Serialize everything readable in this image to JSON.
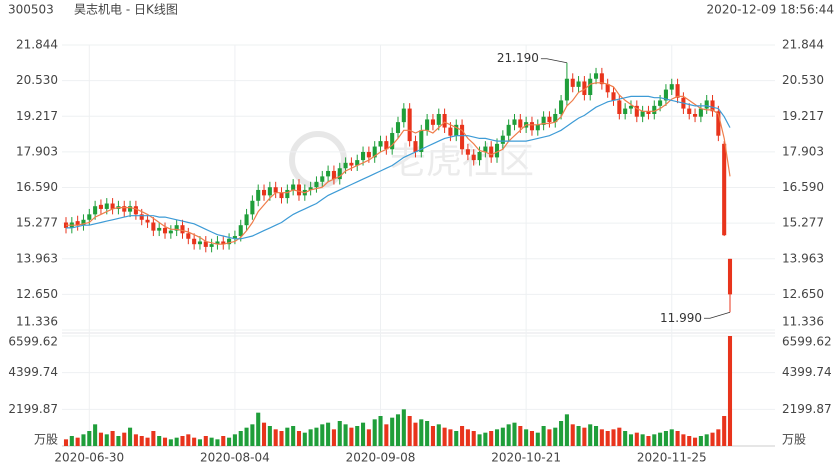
{
  "header": {
    "code": "300503",
    "title": "昊志机电 - 日K线图",
    "timestamp": "2020-12-09 18:56:44"
  },
  "watermark": "老虎社区",
  "chart_data": {
    "type": "candlestick",
    "categories": [
      null,
      null,
      null,
      null,
      "2020-06-30",
      null,
      null,
      null,
      null,
      null,
      null,
      null,
      null,
      null,
      null,
      null,
      null,
      null,
      null,
      null,
      null,
      null,
      null,
      null,
      null,
      null,
      null,
      null,
      null,
      "2020-08-04",
      null,
      null,
      null,
      null,
      null,
      null,
      null,
      null,
      null,
      null,
      null,
      null,
      null,
      null,
      null,
      null,
      null,
      null,
      null,
      null,
      null,
      null,
      null,
      null,
      "2020-09-08",
      null,
      null,
      null,
      null,
      null,
      null,
      null,
      null,
      null,
      null,
      null,
      null,
      null,
      null,
      null,
      null,
      null,
      null,
      null,
      null,
      null,
      null,
      null,
      null,
      "2020-10-21",
      null,
      null,
      null,
      null,
      null,
      null,
      null,
      null,
      null,
      null,
      null,
      null,
      null,
      null,
      null,
      null,
      null,
      null,
      null,
      null,
      null,
      null,
      null,
      null,
      "2020-11-25",
      null,
      null,
      null,
      null,
      null,
      null,
      null,
      null,
      null,
      null
    ],
    "open": [
      15.3,
      15.1,
      15.35,
      15.2,
      15.4,
      15.6,
      15.95,
      15.8,
      16.0,
      15.8,
      15.9,
      15.7,
      15.9,
      15.6,
      15.4,
      15.3,
      15.0,
      15.1,
      14.9,
      15.0,
      15.2,
      14.9,
      14.7,
      14.5,
      14.6,
      14.4,
      14.5,
      14.6,
      14.5,
      14.7,
      14.8,
      15.2,
      15.6,
      16.1,
      16.5,
      16.3,
      16.6,
      16.4,
      16.2,
      16.5,
      16.7,
      16.3,
      16.5,
      16.6,
      16.8,
      17.0,
      17.2,
      16.9,
      17.3,
      17.5,
      17.4,
      17.6,
      17.9,
      17.7,
      18.1,
      18.3,
      18.0,
      18.6,
      19.0,
      19.5,
      18.3,
      17.9,
      18.7,
      19.1,
      18.9,
      19.3,
      18.8,
      18.5,
      18.9,
      18.0,
      17.8,
      17.6,
      17.9,
      18.1,
      17.7,
      18.2,
      18.5,
      18.9,
      19.1,
      18.8,
      19.0,
      18.7,
      18.9,
      19.2,
      19.0,
      19.3,
      19.8,
      20.6,
      20.3,
      20.5,
      20.0,
      20.6,
      20.8,
      20.4,
      20.1,
      19.8,
      19.3,
      19.5,
      19.6,
      19.2,
      19.4,
      19.3,
      19.6,
      19.8,
      20.2,
      20.4,
      19.9,
      19.5,
      19.3,
      19.2,
      19.5,
      19.8,
      19.4,
      18.2,
      13.96
    ],
    "high": [
      15.5,
      15.5,
      15.55,
      15.6,
      15.8,
      16.1,
      16.15,
      16.2,
      16.2,
      16.1,
      16.1,
      16.1,
      16.1,
      15.8,
      15.6,
      15.5,
      15.3,
      15.3,
      15.2,
      15.4,
      15.4,
      15.1,
      14.9,
      14.8,
      14.8,
      14.7,
      14.8,
      14.8,
      14.9,
      15.0,
      15.4,
      15.8,
      16.3,
      16.7,
      16.7,
      16.8,
      16.8,
      16.6,
      16.7,
      16.9,
      16.9,
      16.7,
      16.8,
      17.0,
      17.2,
      17.4,
      17.4,
      17.5,
      17.7,
      17.7,
      17.8,
      18.1,
      18.1,
      18.3,
      18.5,
      18.5,
      18.8,
      19.2,
      19.7,
      19.7,
      18.5,
      18.9,
      19.3,
      19.3,
      19.5,
      19.5,
      19.0,
      19.1,
      19.1,
      18.2,
      18.0,
      18.1,
      18.3,
      18.3,
      18.4,
      18.7,
      19.1,
      19.3,
      19.3,
      19.2,
      19.2,
      19.1,
      19.4,
      19.4,
      19.5,
      20.0,
      21.19,
      20.8,
      20.7,
      20.7,
      20.8,
      21.0,
      21.0,
      20.6,
      20.3,
      20.0,
      19.7,
      19.8,
      19.8,
      19.6,
      19.6,
      19.8,
      20.0,
      20.4,
      20.6,
      20.6,
      20.1,
      19.7,
      19.5,
      19.7,
      20.0,
      20.0,
      19.6,
      18.3,
      13.96
    ],
    "low": [
      14.9,
      14.9,
      15.0,
      15.0,
      15.2,
      15.4,
      15.6,
      15.6,
      15.6,
      15.6,
      15.5,
      15.5,
      15.4,
      15.2,
      15.1,
      14.8,
      14.8,
      14.7,
      14.7,
      14.8,
      14.7,
      14.5,
      14.3,
      14.3,
      14.2,
      14.2,
      14.3,
      14.3,
      14.3,
      14.5,
      14.6,
      15.0,
      15.4,
      15.9,
      16.1,
      16.1,
      16.2,
      16.0,
      16.0,
      16.3,
      16.1,
      16.1,
      16.3,
      16.4,
      16.6,
      16.8,
      16.7,
      16.7,
      17.1,
      17.2,
      17.2,
      17.4,
      17.5,
      17.5,
      17.9,
      17.8,
      17.8,
      18.4,
      18.8,
      18.1,
      17.7,
      17.7,
      18.5,
      18.7,
      18.7,
      18.6,
      18.3,
      18.3,
      17.8,
      17.6,
      17.4,
      17.4,
      17.7,
      17.5,
      17.5,
      18.0,
      18.3,
      18.7,
      18.6,
      18.6,
      18.5,
      18.5,
      18.7,
      18.8,
      18.8,
      19.1,
      19.6,
      20.1,
      20.1,
      19.8,
      19.8,
      20.4,
      20.2,
      19.9,
      19.6,
      19.1,
      19.1,
      19.3,
      19.0,
      19.0,
      19.1,
      19.1,
      19.4,
      19.6,
      20.0,
      19.7,
      19.3,
      19.1,
      19.0,
      19.0,
      19.3,
      19.2,
      18.3,
      14.8,
      11.99
    ],
    "close": [
      15.1,
      15.3,
      15.2,
      15.4,
      15.6,
      15.9,
      15.8,
      16.0,
      15.8,
      15.9,
      15.7,
      15.9,
      15.6,
      15.4,
      15.3,
      15.0,
      15.1,
      14.9,
      15.0,
      15.2,
      14.9,
      14.7,
      14.5,
      14.6,
      14.4,
      14.5,
      14.6,
      14.5,
      14.7,
      14.8,
      15.2,
      15.6,
      16.1,
      16.5,
      16.3,
      16.6,
      16.4,
      16.2,
      16.5,
      16.7,
      16.3,
      16.5,
      16.6,
      16.8,
      17.0,
      17.2,
      16.9,
      17.3,
      17.5,
      17.4,
      17.6,
      17.9,
      17.7,
      18.1,
      18.3,
      18.0,
      18.6,
      19.0,
      19.5,
      18.3,
      17.9,
      18.7,
      19.1,
      18.9,
      19.3,
      18.8,
      18.5,
      18.9,
      18.0,
      17.8,
      17.6,
      17.9,
      18.1,
      17.7,
      18.2,
      18.5,
      18.9,
      19.1,
      18.8,
      19.0,
      18.7,
      18.9,
      19.2,
      19.0,
      19.3,
      19.8,
      20.6,
      20.3,
      20.5,
      20.0,
      20.6,
      20.8,
      20.4,
      20.1,
      19.8,
      19.3,
      19.5,
      19.6,
      19.2,
      19.4,
      19.3,
      19.6,
      19.8,
      20.2,
      20.4,
      19.9,
      19.5,
      19.3,
      19.2,
      19.5,
      19.8,
      19.4,
      18.5,
      14.83,
      12.65
    ],
    "up_color": "#1f9e3a",
    "down_color": "#e8341c",
    "lines": [
      {
        "color": "#ef7d4a",
        "values": [
          15.2,
          15.2,
          15.2,
          15.25,
          15.3,
          15.5,
          15.6,
          15.7,
          15.8,
          15.85,
          15.85,
          15.85,
          15.8,
          15.7,
          15.6,
          15.45,
          15.3,
          15.15,
          15.05,
          15.05,
          15.0,
          14.95,
          14.85,
          14.75,
          14.6,
          14.55,
          14.5,
          14.5,
          14.55,
          14.6,
          14.75,
          15.0,
          15.3,
          15.7,
          15.95,
          16.2,
          16.4,
          16.4,
          16.4,
          16.5,
          16.45,
          16.4,
          16.5,
          16.55,
          16.6,
          16.8,
          16.9,
          17.0,
          17.2,
          17.3,
          17.4,
          17.5,
          17.6,
          17.75,
          17.9,
          18.0,
          18.15,
          18.4,
          18.7,
          18.7,
          18.6,
          18.7,
          18.7,
          18.6,
          18.8,
          19.0,
          18.9,
          18.8,
          18.7,
          18.4,
          18.2,
          17.95,
          17.9,
          17.8,
          17.9,
          18.0,
          18.3,
          18.5,
          18.7,
          18.9,
          18.9,
          18.9,
          18.95,
          18.95,
          19.0,
          19.2,
          19.6,
          19.8,
          20.1,
          20.2,
          20.4,
          20.45,
          20.45,
          20.4,
          20.3,
          20.0,
          19.8,
          19.65,
          19.5,
          19.4,
          19.4,
          19.4,
          19.5,
          19.65,
          19.85,
          19.95,
          19.95,
          19.8,
          19.65,
          19.5,
          19.45,
          19.45,
          19.3,
          18.4,
          17.0
        ]
      },
      {
        "color": "#3d9bd6",
        "values": [
          15.1,
          15.1,
          15.15,
          15.2,
          15.2,
          15.25,
          15.3,
          15.35,
          15.4,
          15.45,
          15.5,
          15.55,
          15.55,
          15.55,
          15.55,
          15.55,
          15.5,
          15.5,
          15.45,
          15.4,
          15.35,
          15.3,
          15.25,
          15.15,
          15.05,
          14.95,
          14.85,
          14.8,
          14.75,
          14.7,
          14.7,
          14.75,
          14.8,
          14.9,
          15.0,
          15.1,
          15.2,
          15.3,
          15.45,
          15.6,
          15.7,
          15.8,
          15.9,
          16.0,
          16.15,
          16.3,
          16.4,
          16.5,
          16.6,
          16.7,
          16.8,
          16.9,
          17.0,
          17.1,
          17.2,
          17.3,
          17.4,
          17.55,
          17.7,
          17.8,
          17.9,
          18.0,
          18.1,
          18.2,
          18.3,
          18.4,
          18.45,
          18.5,
          18.5,
          18.5,
          18.45,
          18.4,
          18.4,
          18.35,
          18.3,
          18.3,
          18.3,
          18.3,
          18.3,
          18.3,
          18.35,
          18.4,
          18.45,
          18.5,
          18.6,
          18.7,
          18.85,
          19.0,
          19.15,
          19.25,
          19.4,
          19.55,
          19.65,
          19.75,
          19.8,
          19.85,
          19.9,
          19.95,
          19.95,
          19.95,
          19.95,
          19.9,
          19.9,
          19.85,
          19.8,
          19.75,
          19.7,
          19.65,
          19.6,
          19.6,
          19.6,
          19.55,
          19.5,
          19.2,
          18.8
        ]
      }
    ],
    "ylim": [
      11.336,
      21.844
    ],
    "yticks": [
      11.336,
      {
        "value": 12.65,
        "label": "12.650"
      },
      13.963,
      15.277,
      {
        "value": 16.59,
        "label": "16.590"
      },
      17.903,
      19.217,
      {
        "value": 20.53,
        "label": "20.530"
      },
      21.844
    ],
    "annotations": [
      {
        "value": 21.19,
        "label": "21.190"
      },
      {
        "value": 11.99,
        "label": "11.990"
      }
    ],
    "volume": {
      "unit": "万股",
      "ylim": [
        0,
        6599.62
      ],
      "yticks": [
        2199.87,
        4399.74,
        6599.62
      ],
      "values": [
        400,
        600,
        500,
        700,
        900,
        1300,
        800,
        700,
        900,
        600,
        800,
        1100,
        700,
        600,
        500,
        900,
        600,
        500,
        400,
        500,
        600,
        700,
        500,
        400,
        600,
        500,
        400,
        600,
        500,
        700,
        900,
        1100,
        1300,
        2000,
        1400,
        1200,
        1000,
        900,
        1100,
        1200,
        900,
        800,
        1000,
        1100,
        1300,
        1400,
        1000,
        1500,
        1300,
        1100,
        1200,
        1400,
        1000,
        1600,
        1800,
        1300,
        1700,
        1900,
        2200,
        1800,
        1400,
        1600,
        1500,
        1200,
        1300,
        1100,
        1000,
        900,
        1200,
        1000,
        900,
        700,
        800,
        900,
        1000,
        1100,
        1300,
        1400,
        1200,
        1000,
        900,
        800,
        1200,
        1000,
        1100,
        1500,
        1900,
        1300,
        1200,
        1100,
        1300,
        1200,
        1000,
        900,
        1000,
        1100,
        900,
        700,
        800,
        700,
        600,
        700,
        800,
        900,
        1000,
        900,
        700,
        600,
        500,
        600,
        700,
        800,
        1000,
        1800,
        6599.62
      ]
    }
  }
}
